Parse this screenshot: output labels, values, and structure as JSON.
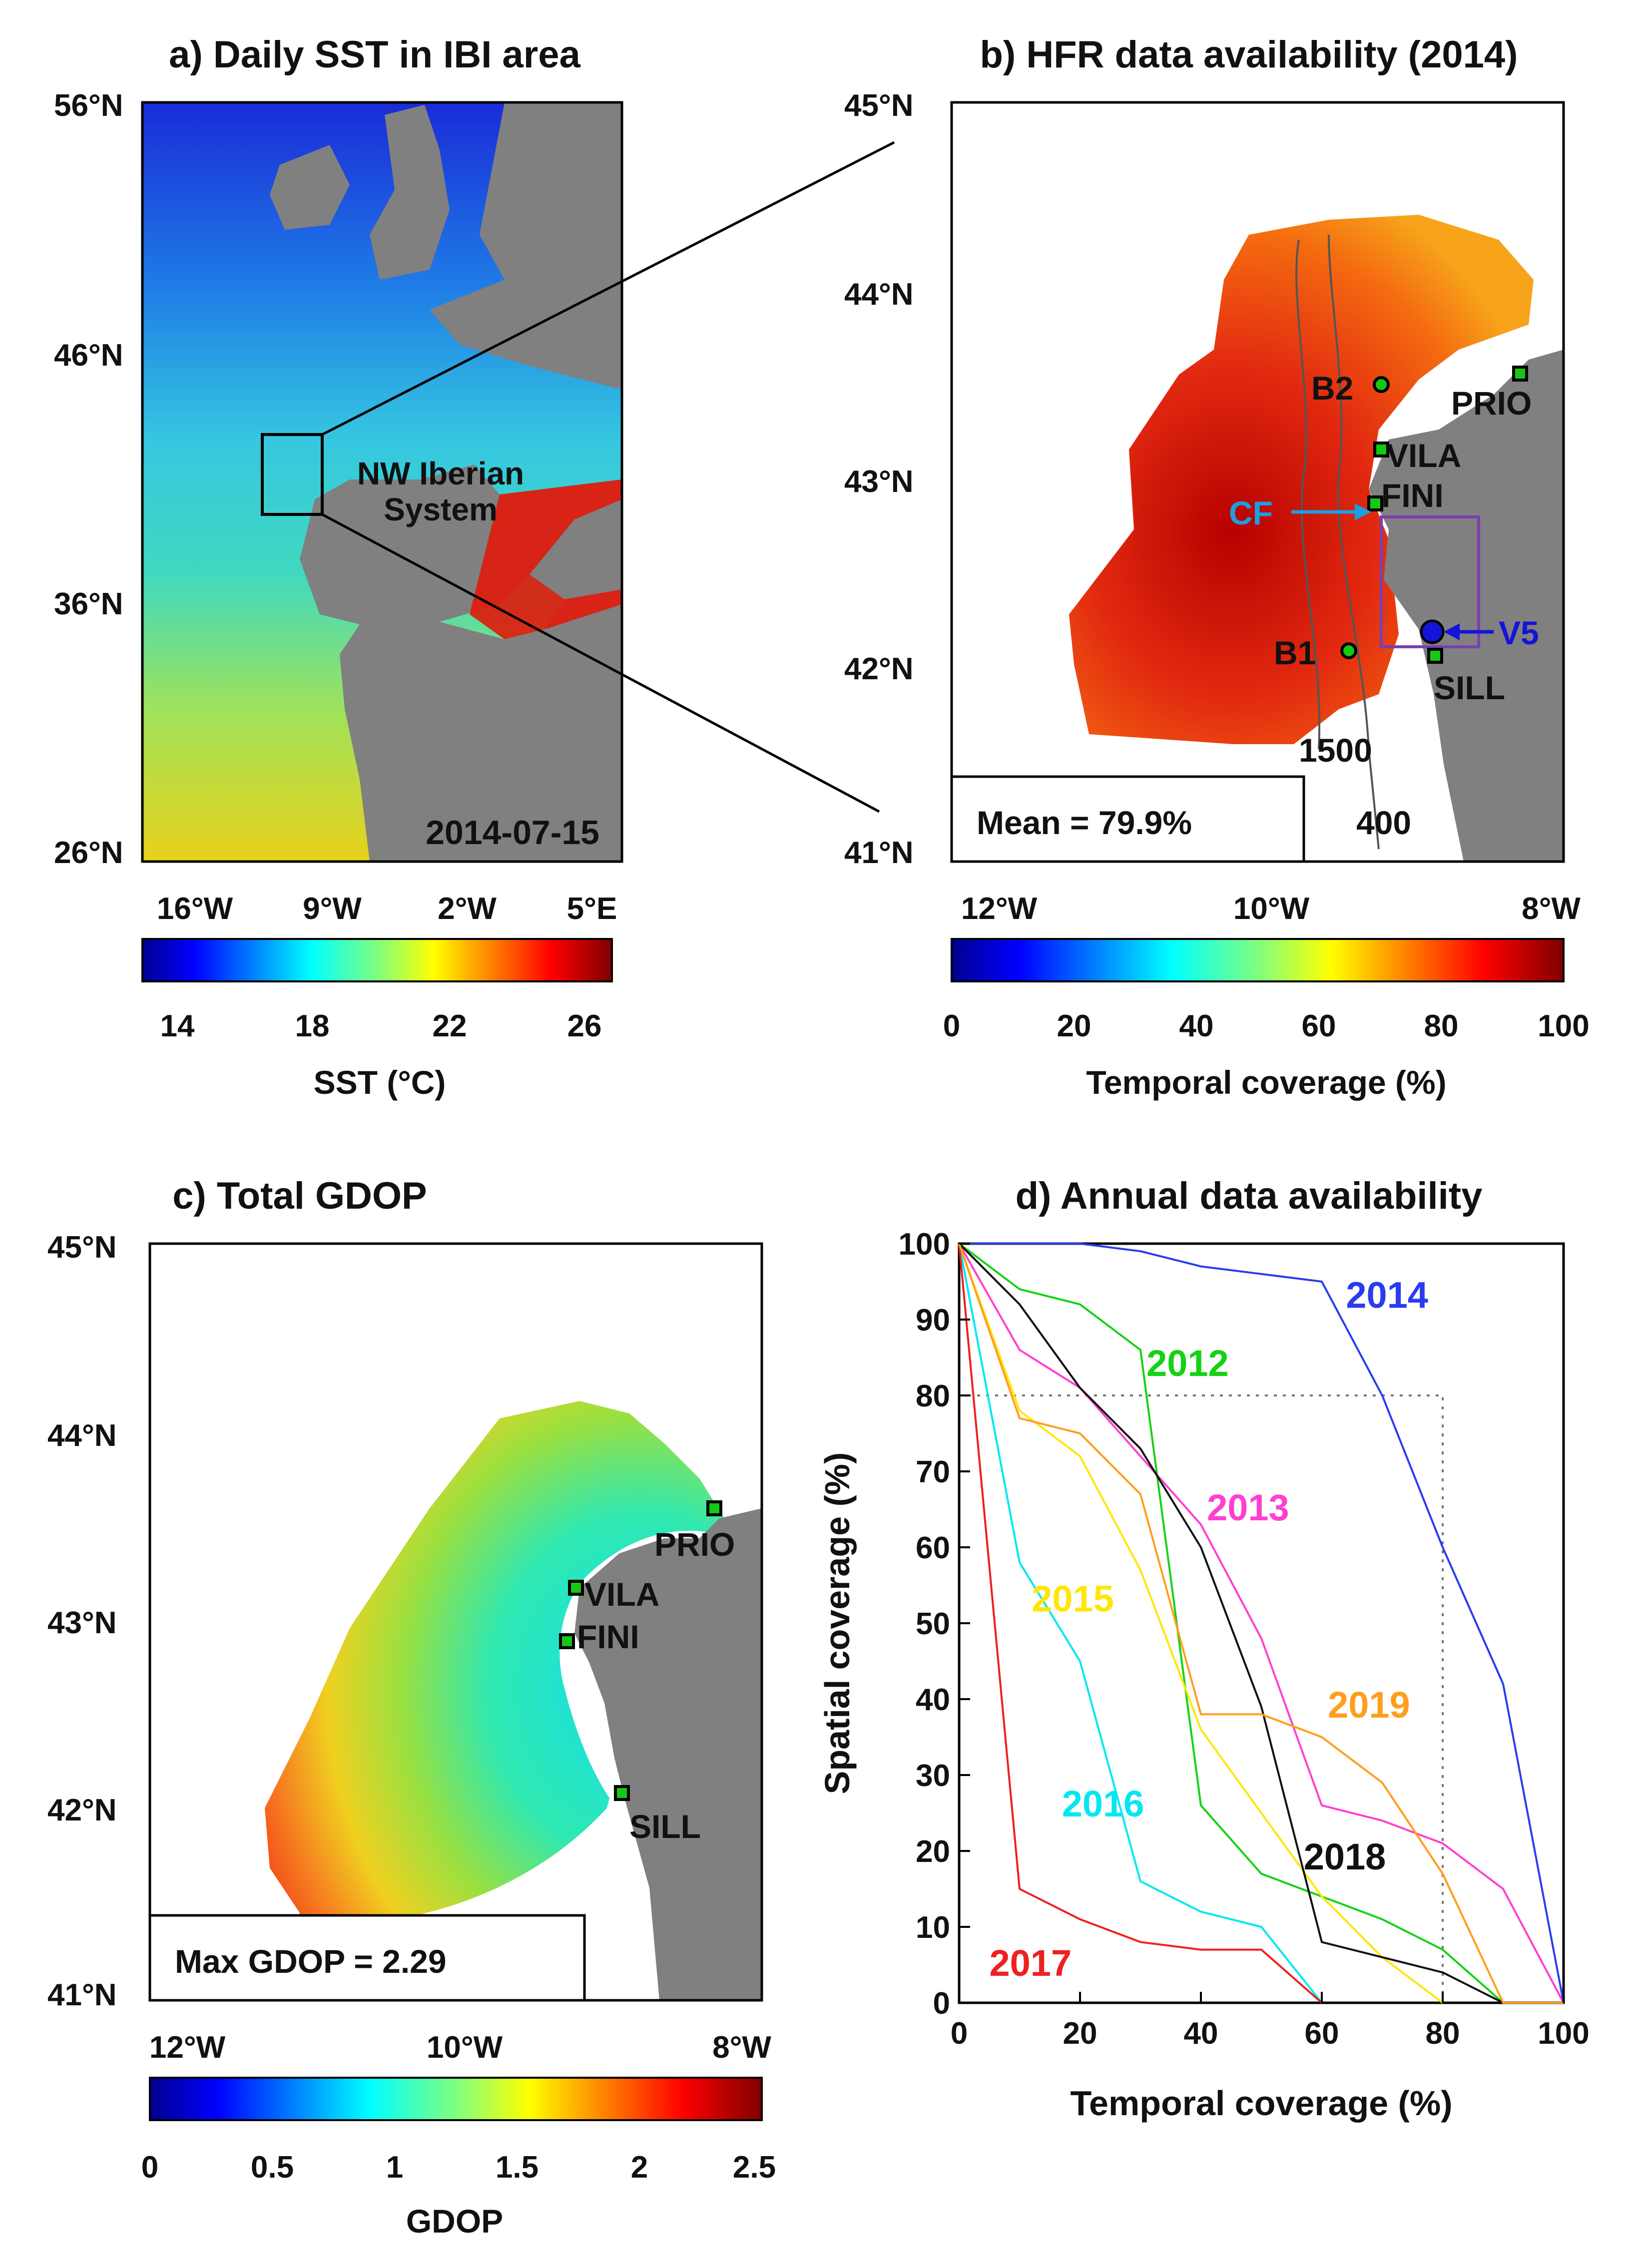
{
  "panel_a": {
    "title": "a) Daily SST in IBI area",
    "lat_ticks": [
      "56°N",
      "46°N",
      "36°N",
      "26°N"
    ],
    "lon_ticks": [
      "16°W",
      "9°W",
      "2°W",
      "5°E"
    ],
    "date": "2014-07-15",
    "region_label_1": "NW Iberian",
    "region_label_2": "System",
    "colorbar": {
      "label": "SST  (°C)",
      "ticks": [
        "14",
        "18",
        "22",
        "26"
      ],
      "range": [
        14,
        26
      ]
    }
  },
  "panel_b": {
    "title": "b) HFR data availability (2014)",
    "lat_ticks": [
      "45°N",
      "44°N",
      "43°N",
      "42°N",
      "41°N"
    ],
    "lon_ticks": [
      "12°W",
      "10°W",
      "8°W"
    ],
    "stations": [
      "B2",
      "PRIO",
      "VILA",
      "FINI",
      "B1",
      "SILL"
    ],
    "markers": {
      "cf": "CF",
      "v5": "V5"
    },
    "isobaths": [
      "1500",
      "400"
    ],
    "mean_box": "Mean = 79.9%",
    "colorbar": {
      "label": "Temporal coverage  (%)",
      "ticks": [
        "0",
        "20",
        "40",
        "60",
        "80",
        "100"
      ],
      "range": [
        0,
        100
      ]
    }
  },
  "panel_c": {
    "title": "c) Total GDOP",
    "lat_ticks": [
      "45°N",
      "44°N",
      "43°N",
      "42°N",
      "41°N"
    ],
    "lon_ticks": [
      "12°W",
      "10°W",
      "8°W"
    ],
    "stations": [
      "PRIO",
      "VILA",
      "FINI",
      "SILL"
    ],
    "max_box": "Max GDOP = 2.29",
    "colorbar": {
      "label": "GDOP",
      "ticks": [
        "0",
        "0.5",
        "1",
        "1.5",
        "2",
        "2.5"
      ],
      "range": [
        0,
        2.5
      ]
    }
  },
  "colors": {
    "land": "#808080",
    "sea_hot": "#e32b10",
    "accent_cf": "#1aa0e0",
    "accent_v5": "#1414d8",
    "box": "#7b3fb0",
    "s2012": "#14d214",
    "s2013": "#ff3fd2",
    "s2014": "#2a3cf0",
    "s2015": "#ffe60a",
    "s2016": "#00e8f0",
    "s2017": "#ef2020",
    "s2018": "#111111",
    "s2019": "#ff9e1c"
  },
  "chart_data": {
    "type": "line",
    "title": "d) Annual data availability",
    "xlabel": "Temporal coverage (%)",
    "ylabel": "Spatial coverage (%)",
    "xlim": [
      0,
      100
    ],
    "ylim": [
      0,
      100
    ],
    "x_ticks": [
      "0",
      "20",
      "40",
      "60",
      "80",
      "100"
    ],
    "y_ticks": [
      "0",
      "10",
      "20",
      "30",
      "40",
      "50",
      "60",
      "70",
      "80",
      "90",
      "100"
    ],
    "threshold": {
      "x": 80,
      "y": 80
    },
    "series": [
      {
        "name": "2012",
        "x": [
          0,
          10,
          20,
          30,
          40,
          50,
          60,
          70,
          80,
          90,
          100
        ],
        "y": [
          100,
          94,
          92,
          86,
          26,
          17,
          14,
          11,
          7,
          0,
          0
        ]
      },
      {
        "name": "2013",
        "x": [
          0,
          10,
          20,
          30,
          40,
          50,
          60,
          70,
          80,
          90,
          100
        ],
        "y": [
          100,
          86,
          81,
          72,
          63,
          48,
          26,
          24,
          21,
          15,
          0
        ]
      },
      {
        "name": "2014",
        "x": [
          0,
          10,
          20,
          30,
          40,
          50,
          60,
          70,
          80,
          90,
          100
        ],
        "y": [
          100,
          100,
          100,
          99,
          97,
          96,
          95,
          80,
          60,
          42,
          0
        ]
      },
      {
        "name": "2015",
        "x": [
          0,
          10,
          20,
          30,
          40,
          50,
          60,
          70,
          80
        ],
        "y": [
          100,
          78,
          72,
          57,
          36,
          25,
          14,
          6,
          0
        ]
      },
      {
        "name": "2016",
        "x": [
          0,
          10,
          20,
          30,
          40,
          50,
          60
        ],
        "y": [
          100,
          58,
          45,
          16,
          12,
          10,
          0
        ]
      },
      {
        "name": "2017",
        "x": [
          0,
          10,
          20,
          30,
          40,
          50,
          60
        ],
        "y": [
          100,
          15,
          11,
          8,
          7,
          7,
          0
        ]
      },
      {
        "name": "2018",
        "x": [
          0,
          10,
          20,
          30,
          40,
          50,
          60,
          70,
          80,
          90,
          100
        ],
        "y": [
          100,
          92,
          81,
          73,
          60,
          39,
          8,
          6,
          4,
          0,
          0
        ]
      },
      {
        "name": "2019",
        "x": [
          0,
          10,
          20,
          30,
          40,
          50,
          60,
          70,
          80,
          90,
          100
        ],
        "y": [
          100,
          77,
          75,
          67,
          38,
          38,
          35,
          29,
          17,
          0,
          0
        ]
      }
    ]
  }
}
